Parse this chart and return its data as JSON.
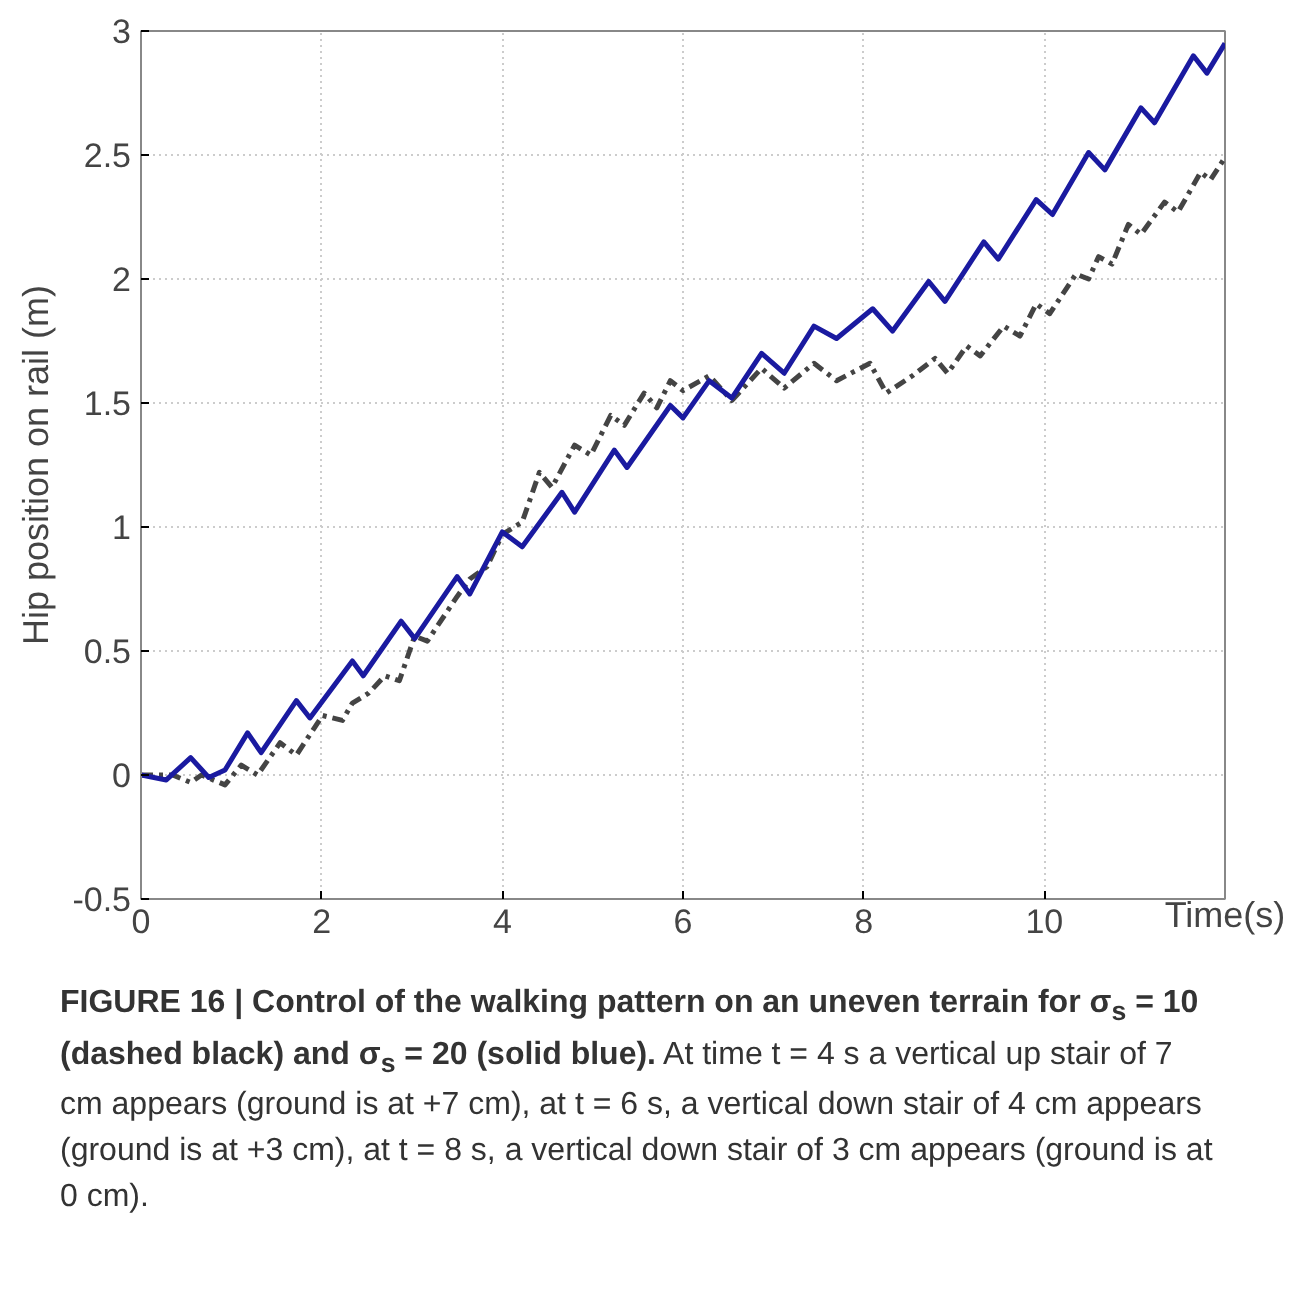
{
  "chart_data": {
    "type": "line",
    "xlabel": "Time(s)",
    "ylabel": "Hip position on rail (m)",
    "annotations": [
      "FIGURE 16 | Control of the walking pattern on an uneven terrain for σ$_{s}$ = 10 (dashed black) and σ$_{s}$ = 20 (solid blue).",
      "At time t = 4 s a vertical up stair of 7 cm appears (ground is at +7 cm), at t = 6 s, a vertical down stair of 4 cm appears (ground is at +3 cm), at t = 8 s, a vertical down stair of 3 cm appears (ground is at 0 cm)."
    ],
    "xlim": [
      0,
      12
    ],
    "ylim": [
      -0.5,
      3
    ],
    "xticks": [
      0,
      2,
      4,
      6,
      8,
      10
    ],
    "yticks": [
      -0.5,
      0,
      0.5,
      1,
      1.5,
      2,
      2.5,
      3
    ],
    "grid": true,
    "series": [
      {
        "color": "#444444",
        "line_style": "dashed",
        "x": [
          0,
          0.35,
          0.55,
          0.67,
          0.93,
          1.11,
          1.29,
          1.54,
          1.72,
          2.01,
          2.23,
          2.34,
          2.52,
          2.7,
          2.86,
          3.03,
          3.17,
          3.5,
          3.64,
          3.83,
          4.0,
          4.22,
          4.41,
          4.55,
          4.8,
          4.98,
          5.2,
          5.35,
          5.57,
          5.71,
          5.86,
          6.0,
          6.29,
          6.54,
          6.87,
          7.12,
          7.45,
          7.7,
          8.07,
          8.25,
          8.54,
          8.79,
          8.93,
          9.14,
          9.29,
          9.55,
          9.73,
          9.91,
          10.06,
          10.35,
          10.49,
          10.6,
          10.75,
          10.93,
          11.07,
          11.33,
          11.48,
          11.73,
          11.84,
          12.0
        ],
        "values": [
          0,
          0,
          -0.03,
          0,
          -0.04,
          0.04,
          0,
          0.13,
          0.08,
          0.24,
          0.22,
          0.29,
          0.33,
          0.4,
          0.38,
          0.56,
          0.54,
          0.72,
          0.79,
          0.84,
          0.97,
          1.02,
          1.22,
          1.16,
          1.33,
          1.29,
          1.45,
          1.41,
          1.54,
          1.48,
          1.59,
          1.55,
          1.61,
          1.51,
          1.64,
          1.56,
          1.66,
          1.59,
          1.66,
          1.54,
          1.61,
          1.68,
          1.62,
          1.73,
          1.69,
          1.81,
          1.77,
          1.9,
          1.86,
          2.02,
          2.0,
          2.09,
          2.06,
          2.22,
          2.18,
          2.31,
          2.27,
          2.43,
          2.4,
          2.49
        ]
      },
      {
        "color": "#1a1aa0",
        "line_style": "solid",
        "x": [
          0,
          0.28,
          0.55,
          0.75,
          0.93,
          1.18,
          1.33,
          1.72,
          1.87,
          2.34,
          2.46,
          2.88,
          3.03,
          3.5,
          3.64,
          4.0,
          4.22,
          4.66,
          4.8,
          5.24,
          5.38,
          5.86,
          6.0,
          6.29,
          6.54,
          6.87,
          7.12,
          7.45,
          7.7,
          8.1,
          8.32,
          8.72,
          8.9,
          9.33,
          9.49,
          9.91,
          10.09,
          10.49,
          10.67,
          11.07,
          11.22,
          11.65,
          11.8,
          12.0
        ],
        "values": [
          0,
          -0.02,
          0.07,
          -0.01,
          0.02,
          0.17,
          0.09,
          0.3,
          0.23,
          0.46,
          0.4,
          0.62,
          0.55,
          0.8,
          0.73,
          0.98,
          0.92,
          1.14,
          1.06,
          1.31,
          1.24,
          1.49,
          1.44,
          1.59,
          1.52,
          1.7,
          1.62,
          1.81,
          1.76,
          1.88,
          1.79,
          1.99,
          1.91,
          2.15,
          2.08,
          2.32,
          2.26,
          2.51,
          2.44,
          2.69,
          2.63,
          2.9,
          2.83,
          2.95
        ]
      }
    ]
  }
}
